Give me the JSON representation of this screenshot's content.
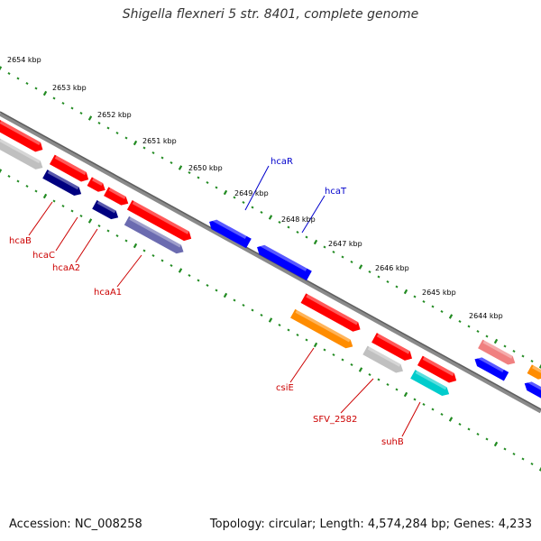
{
  "title": "Shigella flexneri 5 str. 8401, complete genome",
  "footer": {
    "accession": "Accession: NC_008258",
    "topology": "Topology: circular; Length: 4,574,284 bp; Genes: 4,233"
  },
  "colors": {
    "forward_gene": "#ff0000",
    "forward_gene_light": "#f08080",
    "reverse_gene": "#0000ff",
    "cds_forward": "#c0c0c0",
    "cds_reverse": "#000080",
    "rrna": "#ff8c00",
    "trna": "#00cccc",
    "backbone": "#777777",
    "tick": "#228b22",
    "label_forward": "#cc0000",
    "label_reverse": "#0000cc"
  },
  "kbp_ticks": [
    "2654 kbp",
    "2653 kbp",
    "2652 kbp",
    "2651 kbp",
    "2650 kbp",
    "2649 kbp",
    "2648 kbp",
    "2647 kbp",
    "2646 kbp",
    "2645 kbp",
    "2644 kbp"
  ],
  "gene_labels": {
    "hcaB": "hcaB",
    "hcaC": "hcaC",
    "hcaA2": "hcaA2",
    "hcaA1": "hcaA1",
    "hcaR": "hcaR",
    "hcaT": "hcaT",
    "csiE": "csiE",
    "SFV_2582": "SFV_2582",
    "suhB": "suhB"
  }
}
